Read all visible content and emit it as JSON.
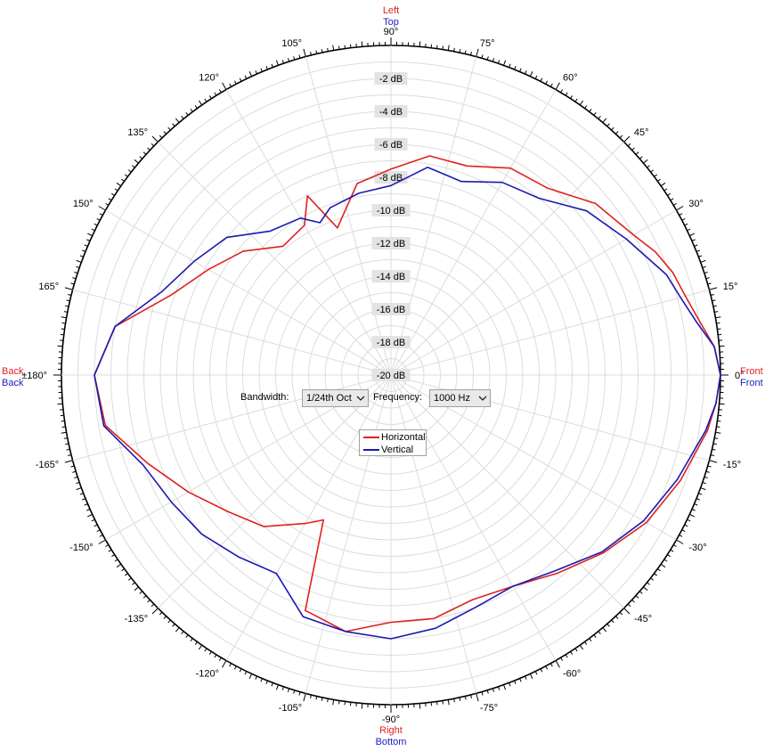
{
  "chart_data": {
    "type": "polar-line",
    "angle_labels": [
      "0°",
      "15°",
      "30°",
      "45°",
      "60°",
      "75°",
      "90°",
      "105°",
      "120°",
      "135°",
      "150°",
      "165°",
      "±180°",
      "-165°",
      "-150°",
      "-135°",
      "-120°",
      "-105°",
      "-90°",
      "-75°",
      "-60°",
      "-45°",
      "-30°",
      "-15°"
    ],
    "radial_labels": [
      "-2 dB",
      "-4 dB",
      "-6 dB",
      "-8 dB",
      "-10 dB",
      "-12 dB",
      "-14 dB",
      "-16 dB",
      "-18 dB",
      "-20 dB"
    ],
    "rlim_db": [
      -20,
      0
    ],
    "grid": true,
    "direction_labels": {
      "top": [
        {
          "text": "Left",
          "color": "#e02020"
        },
        {
          "text": "Top",
          "color": "#2020c0"
        }
      ],
      "bottom": [
        {
          "text": "Right",
          "color": "#e02020"
        },
        {
          "text": "Bottom",
          "color": "#2020c0"
        }
      ],
      "left": [
        {
          "text": "Back",
          "color": "#e02020"
        },
        {
          "text": "Back",
          "color": "#2020c0"
        }
      ],
      "right": [
        {
          "text": "Front",
          "color": "#e02020"
        },
        {
          "text": "Front",
          "color": "#2020c0"
        }
      ]
    },
    "series": [
      {
        "name": "Horizontal",
        "color": "#e02020",
        "points": [
          [
            0,
            0.0
          ],
          [
            5,
            -0.3
          ],
          [
            10,
            -1.0
          ],
          [
            15,
            -1.5
          ],
          [
            20,
            -1.8
          ],
          [
            25,
            -2.3
          ],
          [
            30,
            -3.0
          ],
          [
            40,
            -3.8
          ],
          [
            50,
            -5.2
          ],
          [
            60,
            -5.5
          ],
          [
            70,
            -6.5
          ],
          [
            80,
            -6.5
          ],
          [
            90,
            -7.5
          ],
          [
            100,
            -8.2
          ],
          [
            110,
            -10.5
          ],
          [
            115,
            -8.0
          ],
          [
            120,
            -9.5
          ],
          [
            130,
            -9.8
          ],
          [
            140,
            -8.3
          ],
          [
            150,
            -7.2
          ],
          [
            160,
            -5.8
          ],
          [
            170,
            -3.0
          ],
          [
            180,
            -2.0
          ],
          [
            -170,
            -2.4
          ],
          [
            -160,
            -4.3
          ],
          [
            -150,
            -5.8
          ],
          [
            -140,
            -7.1
          ],
          [
            -130,
            -8.0
          ],
          [
            -120,
            -9.6
          ],
          [
            -115,
            -10.3
          ],
          [
            -110,
            -4.8
          ],
          [
            -100,
            -4.2
          ],
          [
            -90,
            -5.0
          ],
          [
            -80,
            -5.0
          ],
          [
            -70,
            -5.5
          ],
          [
            -60,
            -5.2
          ],
          [
            -50,
            -4.3
          ],
          [
            -40,
            -3.2
          ],
          [
            -30,
            -2.1
          ],
          [
            -20,
            -1.3
          ],
          [
            -10,
            -0.5
          ],
          [
            -5,
            -0.2
          ]
        ]
      },
      {
        "name": "Vertical",
        "color": "#1a1ab0",
        "points": [
          [
            0,
            0.0
          ],
          [
            5,
            -0.3
          ],
          [
            10,
            -1.2
          ],
          [
            15,
            -1.8
          ],
          [
            20,
            -2.2
          ],
          [
            30,
            -3.5
          ],
          [
            40,
            -4.5
          ],
          [
            50,
            -6.0
          ],
          [
            60,
            -6.5
          ],
          [
            70,
            -7.5
          ],
          [
            80,
            -7.2
          ],
          [
            90,
            -8.5
          ],
          [
            100,
            -8.8
          ],
          [
            110,
            -9.2
          ],
          [
            115,
            -9.8
          ],
          [
            120,
            -9.0
          ],
          [
            130,
            -8.6
          ],
          [
            140,
            -7.0
          ],
          [
            150,
            -6.2
          ],
          [
            160,
            -5.2
          ],
          [
            170,
            -3.0
          ],
          [
            180,
            -2.0
          ],
          [
            -170,
            -2.3
          ],
          [
            -160,
            -4.0
          ],
          [
            -150,
            -4.6
          ],
          [
            -140,
            -5.0
          ],
          [
            -130,
            -5.6
          ],
          [
            -120,
            -6.1
          ],
          [
            -110,
            -4.4
          ],
          [
            -100,
            -4.2
          ],
          [
            -90,
            -4.0
          ],
          [
            -80,
            -4.4
          ],
          [
            -70,
            -5.0
          ],
          [
            -60,
            -5.2
          ],
          [
            -50,
            -4.5
          ],
          [
            -40,
            -3.3
          ],
          [
            -30,
            -2.3
          ],
          [
            -20,
            -1.5
          ],
          [
            -10,
            -0.6
          ],
          [
            -5,
            -0.2
          ]
        ]
      }
    ]
  },
  "controls": {
    "bandwidth_label": "Bandwidth:",
    "bandwidth_value": "1/24th Oct",
    "frequency_label": "Frequency:",
    "frequency_value": "1000 Hz"
  },
  "legend": {
    "items": [
      "Horizontal",
      "Vertical"
    ]
  }
}
